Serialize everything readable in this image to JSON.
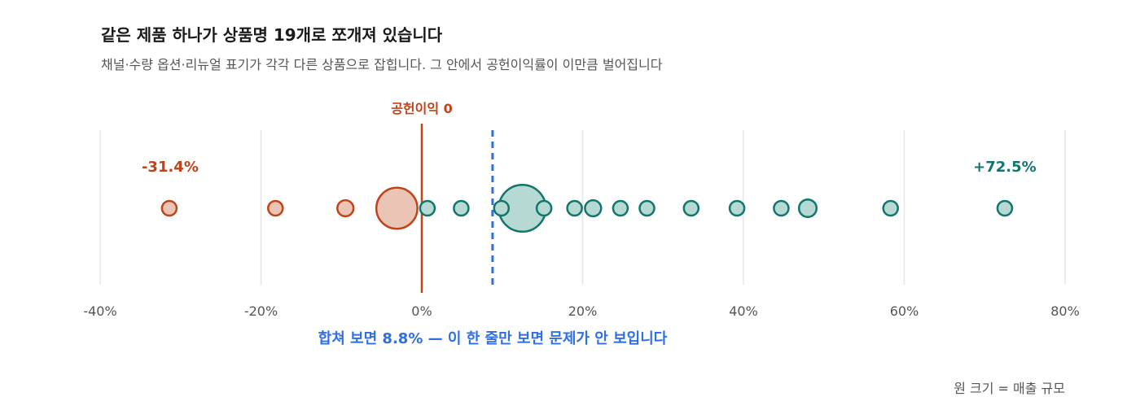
{
  "title": "같은 제품 하나가 상품명 19개로 쪼개져 있습니다",
  "subtitle": "채널·수량 옵션·리뉴얼 표기가 각각 다른 상품으로 잡힙니다. 그 안에서 공헌이익률이 이만큼 벌어집니다",
  "chart_data": {
    "type": "scatter",
    "x_axis": {
      "min": -40,
      "max": 80,
      "ticks": [
        -40,
        -20,
        0,
        20,
        40,
        60,
        80
      ],
      "tick_labels": [
        "-40%",
        "-20%",
        "0%",
        "20%",
        "40%",
        "60%",
        "80%"
      ],
      "unit": "%"
    },
    "grid": true,
    "zero_line_label": "공헌이익 0",
    "aggregate": {
      "value": 8.8,
      "label": "합쳐 보면 8.8% — 이 한 줄만 보면 문제가 안 보입니다"
    },
    "min_label": "-31.4%",
    "max_label": "+72.5%",
    "size_note": "원 크기 = 매출 규모",
    "colors": {
      "negative": "#c0441a",
      "negative_fill": "#ecc4b5",
      "positive": "#11766b",
      "positive_fill": "#b7d9d3",
      "aggregate": "#2f6fe4",
      "grid": "#e6e6e6"
    },
    "points": [
      {
        "x": -31.4,
        "size": 1.0
      },
      {
        "x": -18.2,
        "size": 1.0
      },
      {
        "x": -9.5,
        "size": 1.1
      },
      {
        "x": -3.1,
        "size": 2.8
      },
      {
        "x": 0.7,
        "size": 1.0
      },
      {
        "x": 4.9,
        "size": 1.0
      },
      {
        "x": 9.9,
        "size": 1.0
      },
      {
        "x": 12.5,
        "size": 3.2
      },
      {
        "x": 15.2,
        "size": 1.0
      },
      {
        "x": 19.0,
        "size": 1.0
      },
      {
        "x": 21.3,
        "size": 1.1
      },
      {
        "x": 24.7,
        "size": 1.0
      },
      {
        "x": 28.0,
        "size": 1.0
      },
      {
        "x": 33.5,
        "size": 1.0
      },
      {
        "x": 39.2,
        "size": 1.0
      },
      {
        "x": 44.7,
        "size": 1.0
      },
      {
        "x": 48.0,
        "size": 1.2
      },
      {
        "x": 58.3,
        "size": 1.0
      },
      {
        "x": 72.5,
        "size": 1.0
      }
    ]
  }
}
